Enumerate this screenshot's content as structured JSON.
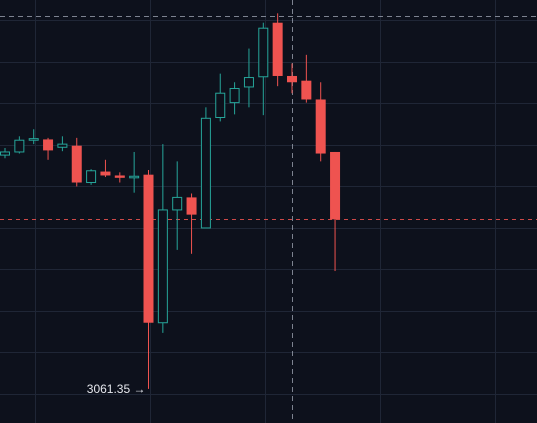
{
  "colors": {
    "background": "#0d111c",
    "grid": "#1f2636",
    "up": "#26a69a",
    "down": "#ef5350",
    "crosshair": "#9aa0ae",
    "price_line": "#ef5350",
    "label_text": "#e6e8ee"
  },
  "chart_data": {
    "type": "candlestick",
    "title": "",
    "xlabel": "",
    "ylabel": "",
    "ylim": [
      3057.0,
      3111.0
    ],
    "grid": true,
    "annotations": {
      "low_label": "3061.35",
      "low_arrow": "→"
    },
    "candles": [
      {
        "o": 3091.2,
        "h": 3092.1,
        "l": 3090.8,
        "c": 3091.6
      },
      {
        "o": 3091.6,
        "h": 3093.6,
        "l": 3091.4,
        "c": 3093.1
      },
      {
        "o": 3093.1,
        "h": 3094.5,
        "l": 3092.6,
        "c": 3093.3
      },
      {
        "o": 3093.2,
        "h": 3093.4,
        "l": 3090.6,
        "c": 3091.8
      },
      {
        "o": 3092.2,
        "h": 3093.6,
        "l": 3091.7,
        "c": 3092.6
      },
      {
        "o": 3092.4,
        "h": 3093.4,
        "l": 3087.2,
        "c": 3087.7
      },
      {
        "o": 3087.7,
        "h": 3089.4,
        "l": 3087.4,
        "c": 3089.2
      },
      {
        "o": 3089.1,
        "h": 3090.6,
        "l": 3088.4,
        "c": 3088.6
      },
      {
        "o": 3088.6,
        "h": 3089.0,
        "l": 3087.7,
        "c": 3088.3
      },
      {
        "o": 3088.3,
        "h": 3091.6,
        "l": 3086.4,
        "c": 3088.5
      },
      {
        "o": 3088.7,
        "h": 3089.3,
        "l": 3061.35,
        "c": 3069.8
      },
      {
        "o": 3069.8,
        "h": 3092.6,
        "l": 3068.5,
        "c": 3084.2
      },
      {
        "o": 3084.2,
        "h": 3090.4,
        "l": 3079.1,
        "c": 3085.8
      },
      {
        "o": 3085.8,
        "h": 3086.3,
        "l": 3078.6,
        "c": 3083.6
      },
      {
        "o": 3081.9,
        "h": 3097.3,
        "l": 3081.9,
        "c": 3095.9
      },
      {
        "o": 3096.0,
        "h": 3101.6,
        "l": 3095.5,
        "c": 3099.1
      },
      {
        "o": 3097.9,
        "h": 3100.5,
        "l": 3096.4,
        "c": 3099.7
      },
      {
        "o": 3099.9,
        "h": 3104.8,
        "l": 3097.3,
        "c": 3101.1
      },
      {
        "o": 3101.2,
        "h": 3108.1,
        "l": 3096.3,
        "c": 3107.4
      },
      {
        "o": 3108.1,
        "h": 3109.3,
        "l": 3100.0,
        "c": 3101.3
      },
      {
        "o": 3101.3,
        "h": 3102.9,
        "l": 3099.1,
        "c": 3100.5
      },
      {
        "o": 3100.7,
        "h": 3104.0,
        "l": 3097.9,
        "c": 3098.3
      },
      {
        "o": 3098.3,
        "h": 3100.5,
        "l": 3090.4,
        "c": 3091.4
      },
      {
        "o": 3091.6,
        "h": 3091.6,
        "l": 3076.4,
        "c": 3083.0
      }
    ],
    "current_price": 3083.0,
    "crosshair": {
      "price": 3109.0,
      "candle_index": 20
    }
  }
}
